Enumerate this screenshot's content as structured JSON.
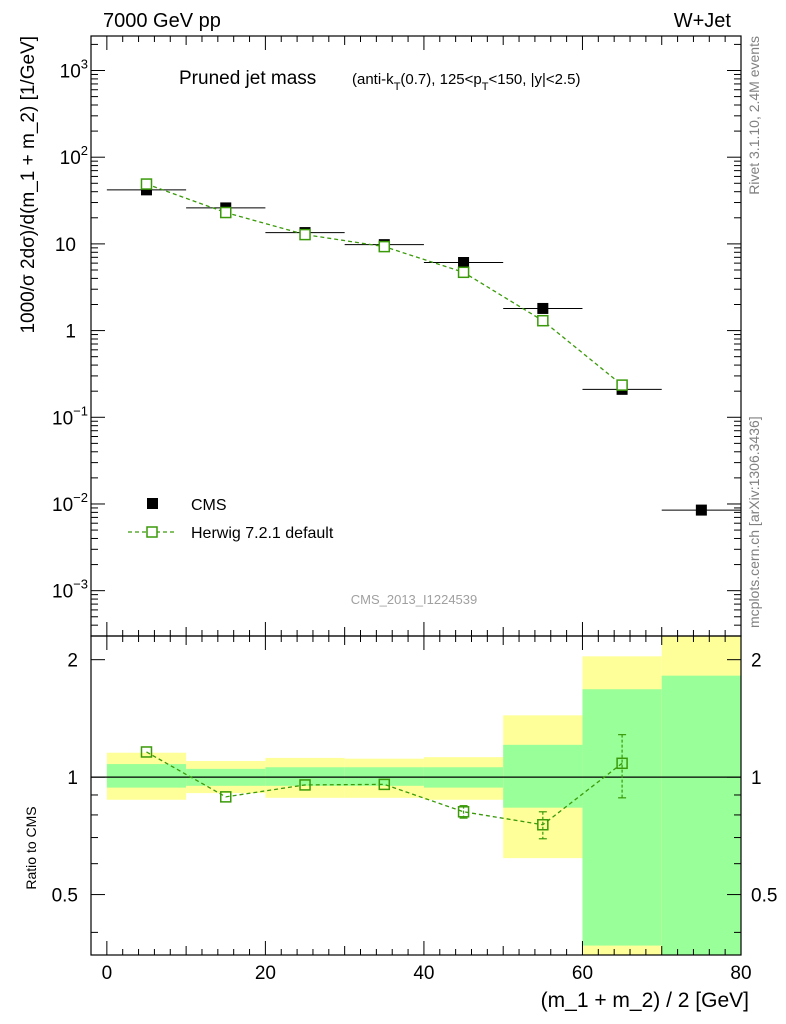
{
  "header": {
    "left": "7000 GeV pp",
    "right": "W+Jet"
  },
  "title": {
    "main": "Pruned jet mass",
    "sub_parts": [
      "(anti-k",
      "T",
      "(0.7), 125<p",
      "T",
      "<150, |y|<2.5)"
    ]
  },
  "side_labels": {
    "rivet": "Rivet 3.1.10,  2.4M events",
    "mcplots": "mcplots.cern.ch [arXiv:1306.3436]"
  },
  "watermark": "CMS_2013_I1224539",
  "colors": {
    "mc": "#3a9a0a",
    "band_inner": "#99ff99",
    "band_outer": "#ffff99",
    "data": "#000000"
  },
  "chart_data": [
    {
      "type": "scatter",
      "scale": "log",
      "ylabel": "1000/σ 2dσ)/d(m_1 + m_2) [1/GeV]",
      "ylim": [
        0.0003,
        2500
      ],
      "xlim": [
        -2,
        80
      ],
      "y_tick_labels": [
        {
          "v": 0.001,
          "base": "10",
          "exp": "−3"
        },
        {
          "v": 0.01,
          "base": "10",
          "exp": "−2"
        },
        {
          "v": 0.1,
          "base": "10",
          "exp": "−1"
        },
        {
          "v": 1,
          "base": "1",
          "exp": ""
        },
        {
          "v": 10,
          "base": "10",
          "exp": ""
        },
        {
          "v": 100,
          "base": "10",
          "exp": "2"
        },
        {
          "v": 1000,
          "base": "10",
          "exp": "3"
        }
      ],
      "legend": [
        {
          "name": "CMS",
          "marker": "filled-square"
        },
        {
          "name": "Herwig 7.2.1 default",
          "marker": "open-square-dashed"
        }
      ],
      "legend_position": "bottom-left",
      "series": [
        {
          "name": "CMS",
          "x": [
            5,
            15,
            25,
            35,
            45,
            55,
            65,
            75
          ],
          "xerr": 5,
          "values": [
            42,
            26,
            13.5,
            9.8,
            6.1,
            1.8,
            0.21,
            0.0085
          ]
        },
        {
          "name": "Herwig 7.2.1 default",
          "x": [
            5,
            15,
            25,
            35,
            45,
            55,
            65
          ],
          "values": [
            49,
            23,
            12.8,
            9.3,
            4.7,
            1.3,
            0.235
          ]
        }
      ]
    },
    {
      "type": "scatter",
      "ylabel": "Ratio to CMS",
      "xlabel": "(m_1 + m_2) / 2 [GeV]",
      "ylim": [
        0.35,
        2.3
      ],
      "xlim": [
        -2,
        80
      ],
      "x_ticks": [
        0,
        20,
        40,
        60,
        80
      ],
      "y_ticks": [
        0.5,
        1,
        2
      ],
      "bands": [
        {
          "x0": 0,
          "x1": 10,
          "inner": [
            0.94,
            1.08
          ],
          "outer": [
            0.875,
            1.155
          ]
        },
        {
          "x0": 10,
          "x1": 20,
          "inner": [
            0.95,
            1.05
          ],
          "outer": [
            0.91,
            1.1
          ]
        },
        {
          "x0": 20,
          "x1": 30,
          "inner": [
            0.95,
            1.06
          ],
          "outer": [
            0.885,
            1.12
          ]
        },
        {
          "x0": 30,
          "x1": 40,
          "inner": [
            0.95,
            1.06
          ],
          "outer": [
            0.885,
            1.115
          ]
        },
        {
          "x0": 40,
          "x1": 50,
          "inner": [
            0.94,
            1.06
          ],
          "outer": [
            0.875,
            1.125
          ]
        },
        {
          "x0": 50,
          "x1": 60,
          "inner": [
            0.835,
            1.21
          ],
          "outer": [
            0.62,
            1.44
          ]
        },
        {
          "x0": 60,
          "x1": 70,
          "inner": [
            0.37,
            1.68
          ],
          "outer": [
            0.35,
            2.04
          ]
        },
        {
          "x0": 70,
          "x1": 80,
          "inner": [
            0.35,
            1.82
          ],
          "outer": [
            0.35,
            2.3
          ]
        }
      ],
      "series": [
        {
          "name": "Herwig 7.2.1 default",
          "x": [
            5,
            15,
            25,
            35,
            45,
            55,
            65
          ],
          "values": [
            1.16,
            0.89,
            0.955,
            0.958,
            0.815,
            0.755,
            1.085
          ],
          "err": [
            0.0,
            0.0,
            0.0,
            0.0,
            0.03,
            0.06,
            0.2
          ]
        }
      ]
    }
  ]
}
